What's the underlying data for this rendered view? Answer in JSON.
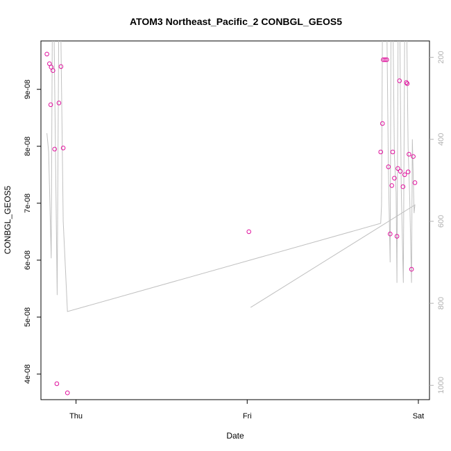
{
  "chart_data": {
    "type": "scatter",
    "title": "ATOM3 Northeast_Pacific_2 CONBGL_GEOS5",
    "xlabel": "Date",
    "ylabel": "CONBGL_GEOS5",
    "x_ticks": [
      "Thu",
      "Fri",
      "Sat"
    ],
    "x_tick_values": [
      0,
      1,
      2
    ],
    "xlim": [
      -0.205,
      2.065
    ],
    "ylim": [
      3.55e-08,
      9.85e-08
    ],
    "y_ticks": [
      4e-08,
      5e-08,
      6e-08,
      7e-08,
      8e-08,
      9e-08
    ],
    "y_tick_labels": [
      "4e-08",
      "5e-08",
      "6e-08",
      "7e-08",
      "8e-08",
      "9e-08"
    ],
    "y2_ticks": [
      200,
      400,
      600,
      800,
      1000
    ],
    "y2_lim": [
      1035,
      160
    ],
    "grid": false,
    "legend": "none",
    "colors": {
      "points": "#e0119d",
      "line": "#c0c0c0",
      "right_axis": "#b0b0b0"
    },
    "series": [
      {
        "type": "scatter",
        "points": [
          [
            -0.17,
            9.62e-08
          ],
          [
            -0.155,
            9.45e-08
          ],
          [
            -0.145,
            9.39e-08
          ],
          [
            -0.135,
            9.33e-08
          ],
          [
            -0.148,
            8.73e-08
          ],
          [
            -0.125,
            7.95e-08
          ],
          [
            -0.112,
            3.83e-08
          ],
          [
            -0.1,
            8.76e-08
          ],
          [
            -0.088,
            9.4e-08
          ],
          [
            -0.075,
            7.97e-08
          ],
          [
            -0.05,
            3.67e-08
          ],
          [
            1.01,
            6.5e-08
          ],
          [
            1.78,
            7.9e-08
          ],
          [
            1.79,
            8.4e-08
          ],
          [
            1.795,
            9.52e-08
          ],
          [
            1.805,
            9.52e-08
          ],
          [
            1.815,
            9.52e-08
          ],
          [
            1.825,
            7.64e-08
          ],
          [
            1.835,
            6.46e-08
          ],
          [
            1.845,
            7.31e-08
          ],
          [
            1.85,
            7.9e-08
          ],
          [
            1.86,
            7.44e-08
          ],
          [
            1.875,
            6.42e-08
          ],
          [
            1.88,
            7.61e-08
          ],
          [
            1.89,
            9.15e-08
          ],
          [
            1.895,
            7.56e-08
          ],
          [
            1.91,
            7.29e-08
          ],
          [
            1.92,
            7.5e-08
          ],
          [
            1.93,
            9.12e-08
          ],
          [
            1.935,
            9.1e-08
          ],
          [
            1.94,
            7.55e-08
          ],
          [
            1.945,
            7.86e-08
          ],
          [
            1.96,
            5.84e-08
          ],
          [
            1.97,
            7.82e-08
          ],
          [
            1.98,
            7.36e-08
          ]
        ]
      },
      {
        "type": "line",
        "axis": "right",
        "points": [
          [
            -0.17,
            385
          ],
          [
            -0.16,
            430
          ],
          [
            -0.145,
            690
          ],
          [
            -0.138,
            90
          ],
          [
            -0.13,
            80
          ],
          [
            -0.11,
            780
          ],
          [
            -0.1,
            60
          ],
          [
            -0.09,
            100
          ],
          [
            -0.075,
            600
          ],
          [
            -0.05,
            820
          ],
          [
            1.78,
            605
          ],
          [
            1.785,
            560
          ],
          [
            1.79,
            120
          ],
          [
            1.8,
            60
          ],
          [
            1.81,
            60
          ],
          [
            1.815,
            80
          ],
          [
            1.825,
            480
          ],
          [
            1.835,
            700
          ],
          [
            1.84,
            140
          ],
          [
            1.85,
            60
          ],
          [
            1.86,
            440
          ],
          [
            1.87,
            530
          ],
          [
            1.875,
            750
          ],
          [
            1.882,
            80
          ],
          [
            1.89,
            60
          ],
          [
            1.9,
            520
          ],
          [
            1.912,
            750
          ],
          [
            1.92,
            150
          ],
          [
            1.93,
            60
          ],
          [
            1.94,
            420
          ],
          [
            1.95,
            550
          ],
          [
            1.96,
            750
          ],
          [
            1.965,
            400
          ],
          [
            1.975,
            580
          ],
          [
            1.98,
            560
          ],
          [
            1.02,
            810
          ],
          [
            1.98,
            560
          ]
        ]
      }
    ]
  }
}
